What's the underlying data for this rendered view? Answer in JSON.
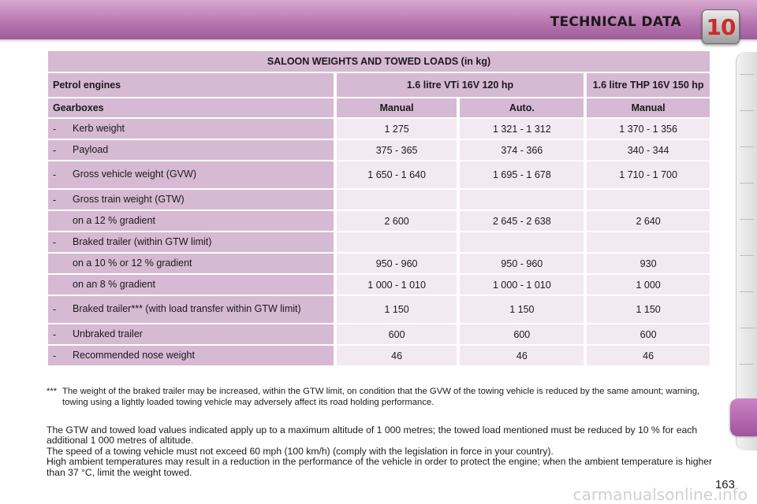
{
  "header": {
    "title": "TECHNICAL DATA",
    "chapter": "10"
  },
  "table": {
    "title": "SALOON WEIGHTS AND TOWED LOADS (in kg)",
    "engines_label": "Petrol engines",
    "engine_1": "1.6 litre VTi 16V 120 hp",
    "engine_2": "1.6 litre THP 16V 150 hp",
    "gearbox_label": "Gearboxes",
    "gearboxes": [
      "Manual",
      "Auto.",
      "Manual"
    ],
    "rows": [
      {
        "dash": "-",
        "label": "Kerb weight",
        "values": [
          "1 275",
          "1 321 - 1 312",
          "1 370 - 1 356"
        ]
      },
      {
        "dash": "-",
        "label": "Payload",
        "values": [
          "375 - 365",
          "374 - 366",
          "340 - 344"
        ]
      },
      {
        "dash": "-",
        "label": "Gross vehicle weight (GVW)",
        "values": [
          "1 650 - 1 640",
          "1 695 - 1 678",
          "1 710 - 1 700"
        ]
      },
      {
        "dash": "-",
        "label": "Gross train weight (GTW)",
        "values": [
          "",
          "",
          ""
        ]
      },
      {
        "dash": "",
        "label": "on a 12 % gradient",
        "values": [
          "2 600",
          "2 645 - 2 638",
          "2 640"
        ]
      },
      {
        "dash": "-",
        "label": "Braked trailer (within GTW limit)",
        "values": [
          "",
          "",
          ""
        ]
      },
      {
        "dash": "",
        "label": "on a 10 % or 12 % gradient",
        "values": [
          "950 - 960",
          "950 - 960",
          "930"
        ]
      },
      {
        "dash": "",
        "label": "on an 8 % gradient",
        "values": [
          "1 000 - 1 010",
          "1 000 - 1 010",
          "1 000"
        ]
      },
      {
        "dash": "-",
        "label": "Braked trailer*** (with load transfer within GTW limit)",
        "values": [
          "1 150",
          "1 150",
          "1 150"
        ]
      },
      {
        "dash": "-",
        "label": "Unbraked trailer",
        "values": [
          "600",
          "600",
          "600"
        ]
      },
      {
        "dash": "-",
        "label": "Recommended nose weight",
        "values": [
          "46",
          "46",
          "46"
        ]
      }
    ]
  },
  "footnote": {
    "marker": "***",
    "text": "The weight of the braked trailer may be increased, within the GTW limit, on condition that the GVW of the towing vehicle is reduced by the same amount; warning, towing using a lightly loaded towing vehicle may adversely affect its road holding performance."
  },
  "notes": [
    "The GTW and towed load values indicated apply up to a maximum altitude of 1 000 metres; the towed load mentioned must be reduced by 10 % for each additional 1 000 metres of altitude.",
    "The speed of a towing vehicle must not exceed 60 mph (100 km/h) (comply with the legislation in force in your country).",
    "High ambient temperatures may result in a reduction in the performance of the vehicle in order to protect the engine; when the ambient temperature is higher than 37 °C, limit the weight towed."
  ],
  "page_number": "163",
  "watermark": "carmanualsonline.info",
  "colors": {
    "header_accent": "#b978b2",
    "cell_label": "#d6b9d3",
    "cell_value": "#f3e9f1",
    "chapter_number": "#ce2a2a"
  }
}
